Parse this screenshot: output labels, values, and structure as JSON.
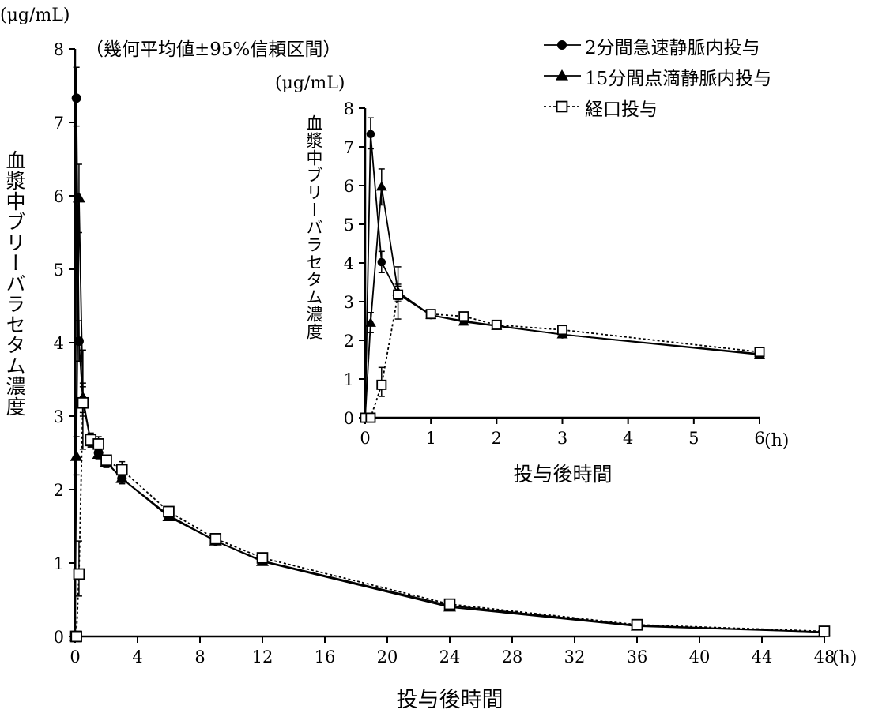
{
  "chart_data": {
    "type": "line",
    "annotation": "（幾何平均値±95%信頼区間）",
    "ylabel": "血漿中ブリーバラセタム濃度",
    "yunit": "(μg/mL)",
    "xlabel": "投与後時間",
    "xunit": "(h)",
    "legend_position": "top-right",
    "x": [
      0,
      0.083,
      0.25,
      0.5,
      1,
      1.5,
      2,
      3,
      6,
      9,
      12,
      24,
      36,
      48
    ],
    "series": [
      {
        "name": "2分間急速静脈内投与",
        "marker": "filled-circle",
        "line": "solid",
        "values": [
          0,
          7.33,
          4.02,
          3.2,
          2.65,
          2.5,
          2.38,
          2.15,
          1.65,
          1.3,
          1.03,
          0.42,
          0.15,
          0.06
        ],
        "ci_low": [
          null,
          6.95,
          3.75,
          3.0,
          2.58,
          2.43,
          2.32,
          2.08,
          1.6,
          1.26,
          1.0,
          0.4,
          0.14,
          0.05
        ],
        "ci_high": [
          null,
          7.75,
          4.3,
          3.4,
          2.75,
          2.58,
          2.45,
          2.22,
          1.7,
          1.35,
          1.07,
          0.45,
          0.17,
          0.07
        ]
      },
      {
        "name": "15分間点滴静脈内投与",
        "marker": "filled-triangle",
        "line": "solid",
        "x_override": [
          0,
          0.083,
          0.25,
          0.5,
          1,
          1.5,
          2,
          3,
          6,
          9,
          12,
          24,
          36,
          48
        ],
        "values": [
          0,
          2.45,
          5.97,
          3.25,
          2.65,
          2.48,
          2.37,
          2.15,
          1.63,
          1.3,
          1.02,
          0.4,
          0.14,
          0.06
        ],
        "ci_low": [
          null,
          2.2,
          5.5,
          3.05,
          2.58,
          2.42,
          2.3,
          2.08,
          1.58,
          1.26,
          0.99,
          0.38,
          0.13,
          0.05
        ],
        "ci_high": [
          null,
          2.72,
          6.43,
          3.45,
          2.75,
          2.55,
          2.43,
          2.22,
          1.68,
          1.35,
          1.06,
          0.43,
          0.16,
          0.07
        ]
      },
      {
        "name": "経口投与",
        "marker": "open-square",
        "line": "dotted",
        "values": [
          0,
          0,
          0.85,
          3.18,
          2.68,
          2.62,
          2.4,
          2.27,
          1.7,
          1.33,
          1.07,
          0.44,
          0.16,
          0.07
        ],
        "ci_low": [
          null,
          null,
          0.55,
          2.55,
          2.6,
          2.55,
          2.33,
          2.18,
          1.64,
          1.28,
          1.03,
          0.41,
          0.14,
          0.06
        ],
        "ci_high": [
          null,
          null,
          1.3,
          3.9,
          2.77,
          2.72,
          2.46,
          2.38,
          1.76,
          1.38,
          1.11,
          0.47,
          0.18,
          0.08
        ]
      }
    ],
    "main": {
      "xlim": [
        0,
        48
      ],
      "ylim": [
        0,
        8
      ],
      "xticks": [
        0,
        4,
        8,
        12,
        16,
        20,
        24,
        28,
        32,
        36,
        40,
        44,
        48
      ],
      "yticks": [
        0,
        1,
        2,
        3,
        4,
        5,
        6,
        7,
        8
      ]
    },
    "inset": {
      "xlim": [
        0,
        6
      ],
      "ylim": [
        0,
        8
      ],
      "xticks": [
        0,
        1,
        2,
        3,
        4,
        5,
        6
      ],
      "yticks": [
        0,
        1,
        2,
        3,
        4,
        5,
        6,
        7,
        8
      ]
    }
  }
}
